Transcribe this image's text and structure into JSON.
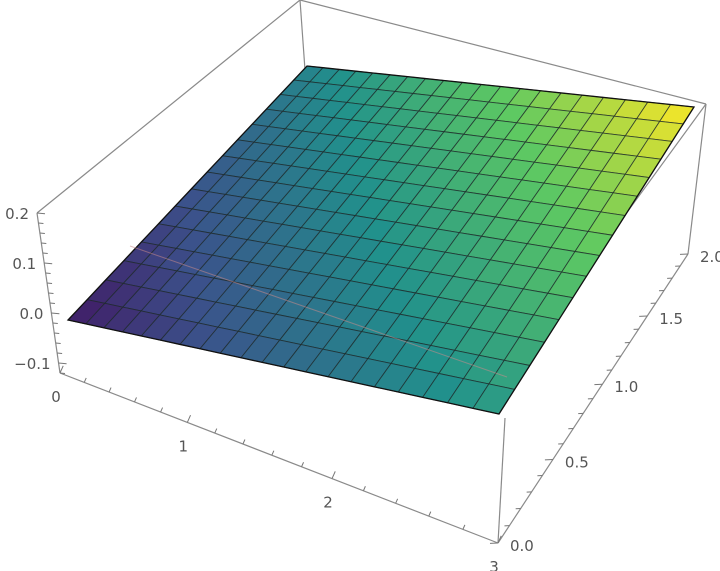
{
  "chart_data": {
    "type": "surface3d",
    "title": "",
    "xlabel": "",
    "ylabel": "",
    "zlabel": "",
    "xlim": [
      0,
      3
    ],
    "ylim": [
      0,
      2
    ],
    "zlim": [
      -0.12,
      0.2
    ],
    "x_ticks": [
      "0",
      "1",
      "2",
      "3"
    ],
    "x_tick_values": [
      0,
      1,
      2,
      3
    ],
    "y_ticks": [
      "0.0",
      "0.5",
      "1.0",
      "1.5",
      "2.0"
    ],
    "y_tick_values": [
      0,
      0.5,
      1,
      1.5,
      2
    ],
    "z_ticks": [
      "−0.1",
      "0.0",
      "0.1",
      "0.2"
    ],
    "z_tick_values": [
      -0.1,
      0,
      0.1,
      0.2
    ],
    "surface_corners": {
      "z_at_x0_y0": 0.0,
      "z_at_x3_y0": 0.1,
      "z_at_x0_y2": 0.08,
      "z_at_x3_y2": 0.2
    },
    "mesh": {
      "x_divisions": 20,
      "y_divisions": 15
    },
    "colormap": [
      "#440154",
      "#3b528b",
      "#21918c",
      "#5ec962",
      "#fde725"
    ],
    "box": true,
    "grid": false
  }
}
